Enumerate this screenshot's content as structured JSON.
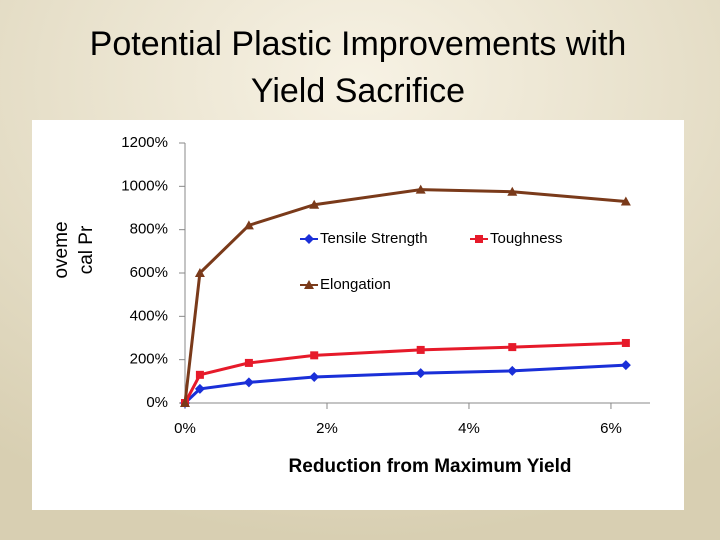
{
  "chart_data": {
    "type": "line",
    "title": [
      "Potential Plastic Improvements with",
      "Yield Sacrifice"
    ],
    "y_label": [
      "oveme",
      "cal Pr"
    ],
    "x_label": "Reduction from Maximum Yield",
    "x": [
      0,
      0.21,
      0.9,
      1.82,
      3.32,
      4.61,
      6.21
    ],
    "xlim": [
      0,
      6.55
    ],
    "xticks": [
      {
        "value": 0,
        "label": "0%"
      },
      {
        "value": 2,
        "label": "2%"
      },
      {
        "value": 4,
        "label": "4%"
      },
      {
        "value": 6,
        "label": "6%"
      }
    ],
    "ylim": [
      0,
      1200
    ],
    "yticks": [
      {
        "value": 0,
        "label": "0%"
      },
      {
        "value": 200,
        "label": "200%"
      },
      {
        "value": 400,
        "label": "400%"
      },
      {
        "value": 600,
        "label": "600%"
      },
      {
        "value": 800,
        "label": "800%"
      },
      {
        "value": 1000,
        "label": "1000%"
      },
      {
        "value": 1200,
        "label": "1200%"
      }
    ],
    "series": [
      {
        "name": "Tensile Strength",
        "color": "#1a2fd8",
        "marker": "diamond",
        "values": [
          0,
          65,
          95,
          120,
          138,
          148,
          175
        ]
      },
      {
        "name": "Toughness",
        "color": "#e61a2a",
        "marker": "square",
        "values": [
          0,
          130,
          185,
          220,
          245,
          258,
          277
        ]
      },
      {
        "name": "Elongation",
        "color": "#7a3a1a",
        "marker": "triangle",
        "values": [
          0,
          600,
          820,
          915,
          985,
          975,
          930
        ]
      }
    ]
  }
}
